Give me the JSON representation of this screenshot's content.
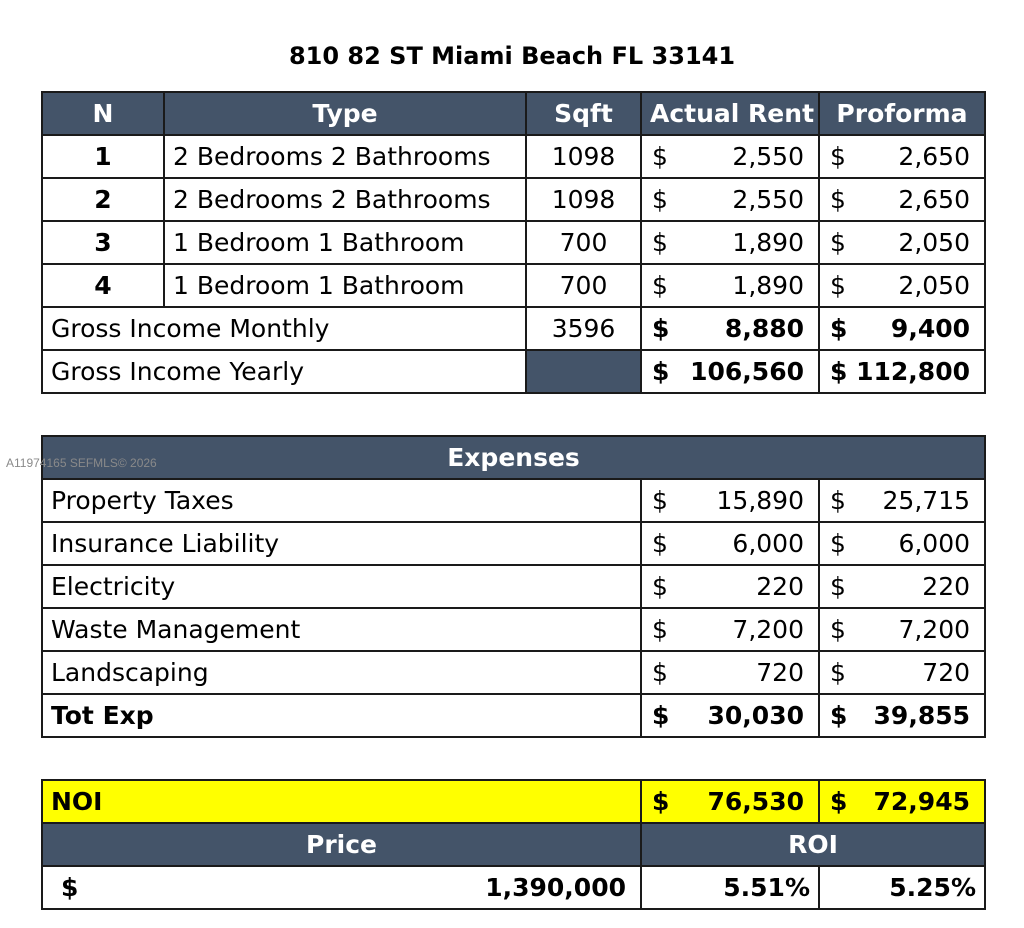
{
  "title": "810 82 ST Miami Beach FL 33141",
  "watermark": "A11974165 SEFMLS© 2026",
  "currency": "$",
  "income": {
    "headers": {
      "n": "N",
      "type": "Type",
      "sqft": "Sqft",
      "actual": "Actual Rent",
      "proforma": "Proforma"
    },
    "units": [
      {
        "n": "1",
        "type": "2 Bedrooms 2 Bathrooms",
        "sqft": "1098",
        "actual": "2,550",
        "proforma": "2,650"
      },
      {
        "n": "2",
        "type": "2 Bedrooms 2 Bathrooms",
        "sqft": "1098",
        "actual": "2,550",
        "proforma": "2,650"
      },
      {
        "n": "3",
        "type": "1 Bedroom 1 Bathroom",
        "sqft": "700",
        "actual": "1,890",
        "proforma": "2,050"
      },
      {
        "n": "4",
        "type": "1 Bedroom 1 Bathroom",
        "sqft": "700",
        "actual": "1,890",
        "proforma": "2,050"
      }
    ],
    "monthly": {
      "label": "Gross Income Monthly",
      "sqft": "3596",
      "actual": "8,880",
      "proforma": "9,400"
    },
    "yearly": {
      "label": "Gross Income Yearly",
      "actual": "106,560",
      "proforma": "112,800"
    }
  },
  "expenses": {
    "header": "Expenses",
    "items": [
      {
        "label": "Property Taxes",
        "actual": "15,890",
        "proforma": "25,715"
      },
      {
        "label": "Insurance Liability",
        "actual": "6,000",
        "proforma": "6,000"
      },
      {
        "label": "Electricity",
        "actual": "220",
        "proforma": "220"
      },
      {
        "label": "Waste Management",
        "actual": "7,200",
        "proforma": "7,200"
      },
      {
        "label": "Landscaping",
        "actual": "720",
        "proforma": "720"
      }
    ],
    "total": {
      "label": "Tot Exp",
      "actual": "30,030",
      "proforma": "39,855"
    }
  },
  "summary": {
    "noi": {
      "label": "NOI",
      "actual": "76,530",
      "proforma": "72,945"
    },
    "price_header": "Price",
    "roi_header": "ROI",
    "price": "1,390,000",
    "roi_actual": "5.51%",
    "roi_proforma": "5.25%"
  }
}
